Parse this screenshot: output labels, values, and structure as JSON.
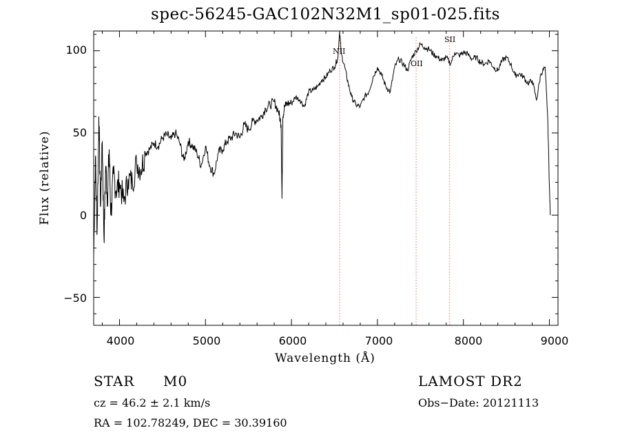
{
  "chart_data": {
    "type": "line",
    "title": "spec-56245-GAC102N32M1_sp01-025.fits",
    "xlabel": "Wavelength (Å)",
    "ylabel": "Flux (relative)",
    "xlim": [
      3700,
      9100
    ],
    "ylim": [
      -67,
      112
    ],
    "xticks": [
      "4000",
      "5000",
      "6000",
      "7000",
      "8000",
      "9000"
    ],
    "yticks": [
      "100",
      "50",
      "0",
      "−50"
    ],
    "line_color": "#000000",
    "marker_color": "#d92020",
    "series": [
      {
        "x": [
          3700,
          3720,
          3740,
          3760,
          3780,
          3800,
          3820,
          3840,
          3860,
          3880,
          3900,
          3930,
          3960,
          4000,
          4050,
          4100,
          4150,
          4200,
          4250,
          4300,
          4350,
          4400,
          4450,
          4500,
          4550,
          4600,
          4650,
          4700,
          4750,
          4800,
          4850,
          4900,
          4950,
          5000,
          5050,
          5100,
          5150,
          5200,
          5250,
          5300,
          5350,
          5400,
          5450,
          5500,
          5550,
          5600,
          5650,
          5700,
          5750,
          5800,
          5850,
          5880,
          5890,
          5900,
          5920,
          5950,
          6000,
          6050,
          6100,
          6150,
          6200,
          6250,
          6300,
          6350,
          6400,
          6450,
          6500,
          6540,
          6560,
          6580,
          6620,
          6660,
          6700,
          6750,
          6800,
          6850,
          6900,
          6950,
          7000,
          7050,
          7100,
          7150,
          7200,
          7250,
          7300,
          7350,
          7400,
          7450,
          7500,
          7550,
          7600,
          7650,
          7700,
          7750,
          7800,
          7850,
          7900,
          7950,
          8000,
          8050,
          8100,
          8150,
          8200,
          8250,
          8300,
          8350,
          8400,
          8450,
          8500,
          8550,
          8600,
          8650,
          8700,
          8750,
          8800,
          8850,
          8900,
          8950,
          8980,
          9000,
          9010
        ],
        "y": [
          -25,
          35,
          -10,
          60,
          5,
          45,
          -15,
          30,
          10,
          40,
          0,
          25,
          15,
          20,
          8,
          22,
          20,
          32,
          28,
          38,
          40,
          44,
          42,
          47,
          49,
          46,
          50,
          44,
          33,
          45,
          42,
          38,
          30,
          42,
          30,
          25,
          38,
          40,
          45,
          47,
          50,
          47,
          55,
          52,
          57,
          58,
          60,
          65,
          67,
          69,
          63,
          55,
          10,
          60,
          66,
          68,
          68,
          72,
          70,
          66,
          75,
          76,
          78,
          82,
          84,
          88,
          90,
          96,
          112,
          98,
          90,
          80,
          72,
          67,
          66,
          72,
          75,
          84,
          90,
          85,
          78,
          75,
          90,
          95,
          92,
          88,
          96,
          100,
          104,
          102,
          101,
          98,
          96,
          94,
          96,
          92,
          99,
          97,
          99,
          98,
          95,
          96,
          93,
          92,
          94,
          90,
          88,
          94,
          96,
          92,
          85,
          86,
          84,
          80,
          82,
          70,
          86,
          90,
          60,
          18,
          0
        ]
      }
    ],
    "lines": [
      {
        "name": "NII",
        "x": 6560
      },
      {
        "name": "OII",
        "x": 7450
      },
      {
        "name": "SII",
        "x": 7840
      }
    ]
  },
  "info": {
    "class": "STAR",
    "subclass": "M0",
    "survey": "LAMOST DR2",
    "cz": "cz = 46.2 ± 2.1 km/s",
    "obs_date": "Obs−Date: 20121113",
    "radec": "RA = 102.78249, DEC =  30.39160"
  }
}
